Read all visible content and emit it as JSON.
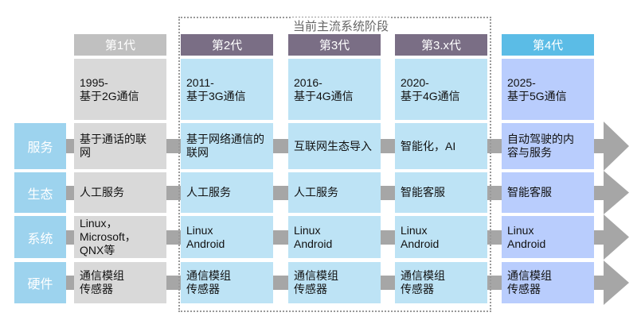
{
  "current_stage_title": "当前主流系统阶段",
  "colors": {
    "header_gen1": "#c0c0c0",
    "header_current": "#7a6e85",
    "header_gen4": "#5bbce6",
    "cell_gen1": "#d9d9d9",
    "cell_current": "#bde3f5",
    "cell_gen4": "#b9cdfd",
    "row_label": "#9dd3ee",
    "connector": "#a6a6a6"
  },
  "generations": [
    {
      "header": "第1代",
      "period": "1995-\n基于2G通信",
      "style": "gen1"
    },
    {
      "header": "第2代",
      "period": "2011-\n基于3G通信",
      "style": "current"
    },
    {
      "header": "第3代",
      "period": "2016-\n基于4G通信",
      "style": "current"
    },
    {
      "header": "第3.x代",
      "period": "2020-\n基于4G通信",
      "style": "current"
    },
    {
      "header": "第4代",
      "period": "2025-\n基于5G通信",
      "style": "gen4"
    }
  ],
  "rows": [
    {
      "label": "服务",
      "cells": [
        "基于通话的联\n网",
        "基于网络通信的\n联网",
        "互联网生态导入",
        "智能化，AI",
        "自动驾驶的内\n容与服务"
      ]
    },
    {
      "label": "生态",
      "cells": [
        "人工服务",
        "人工服务",
        "人工服务",
        "智能客服",
        "智能客服"
      ]
    },
    {
      "label": "系统",
      "cells": [
        "Linux，\nMicrosoft，\nQNX等",
        "Linux\nAndroid",
        "Linux\nAndroid",
        "Linux\nAndroid",
        "Linux\nAndroid"
      ]
    },
    {
      "label": "硬件",
      "cells": [
        "通信模组\n传感器",
        "通信模组\n传感器",
        "通信模组\n传感器",
        "通信模组\n传感器",
        "通信模组\n传感器"
      ]
    }
  ]
}
